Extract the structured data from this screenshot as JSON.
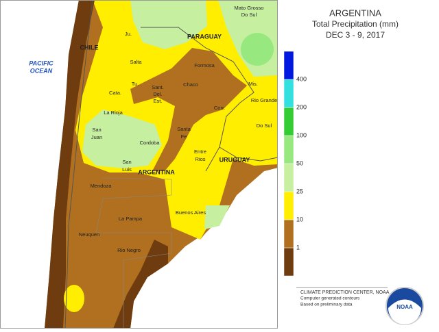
{
  "title": "ARGENTINA",
  "subtitle": "Total Precipitation (mm)",
  "date": "DEC 3 - 9, 2017",
  "legend": {
    "ticks": [
      1,
      10,
      25,
      50,
      100,
      200,
      400
    ],
    "colors": [
      "#6e3c0e",
      "#b07020",
      "#ffee00",
      "#c6f0a0",
      "#98e880",
      "#33cc33",
      "#33e0e0",
      "#0018e0"
    ]
  },
  "places": [
    [
      "Mato Grosso",
      "Do Sul"
    ],
    [
      "Ju."
    ],
    [
      "PARAGUAY"
    ],
    [
      "CHILE"
    ],
    [
      "PACIFIC",
      "OCEAN"
    ],
    [
      "Salta"
    ],
    [
      "Formosa"
    ],
    [
      "Tu."
    ],
    [
      "Chaco"
    ],
    [
      "Mis."
    ],
    [
      "Cata."
    ],
    [
      "Sant.",
      "Del.",
      "Est."
    ],
    [
      "Corr."
    ],
    [
      "Rio Grande",
      "Do Sul"
    ],
    [
      "La Rioja"
    ],
    [
      "San",
      "Juan"
    ],
    [
      "Cordoba"
    ],
    [
      "Santa",
      "Fe"
    ],
    [
      "Entre",
      "Rios"
    ],
    [
      "URUGUAY"
    ],
    [
      "San",
      "Luis"
    ],
    [
      "ARGENTINA"
    ],
    [
      "Mendoza"
    ],
    [
      "Buenos Aires"
    ],
    [
      "La Pampa"
    ],
    [
      "Neuquen"
    ],
    [
      "Rio Negro"
    ]
  ],
  "credits": [
    "CLIMATE PREDICTION CENTER, NOAA",
    "Computer generated contours",
    "Based on preliminary data"
  ],
  "logo": "NOAA"
}
